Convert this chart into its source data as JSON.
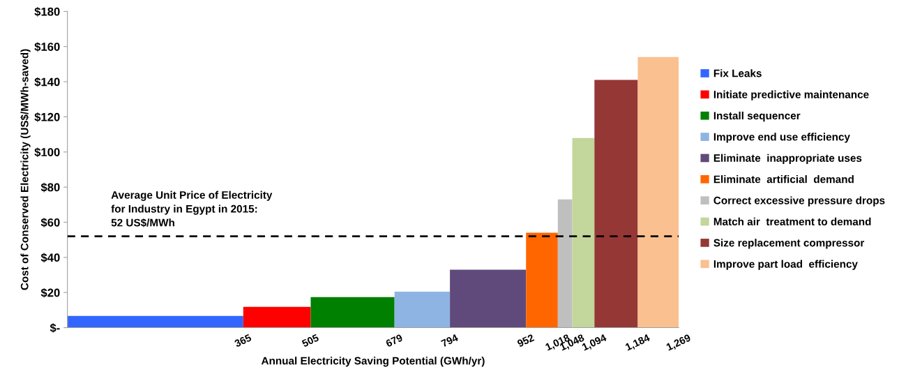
{
  "chart_data": {
    "type": "bar",
    "xlabel": "Annual Electricity Saving Potential (GWh/yr)",
    "ylabel": "Cost of Conserved Electricity (US$/MWh-saved)",
    "x": [
      182.5,
      435,
      592,
      736.5,
      873,
      985,
      1033,
      1071,
      1139,
      1226.5
    ],
    "series": [
      {
        "name": "Fix Leaks",
        "color": "#3366ff",
        "values": [
          6.7,
          null,
          null,
          null,
          null,
          null,
          null,
          null,
          null,
          null
        ]
      },
      {
        "name": "Initiate predictive maintenance",
        "color": "#ff0000",
        "values": [
          null,
          11.8,
          null,
          null,
          null,
          null,
          null,
          null,
          null,
          null
        ]
      },
      {
        "name": "Install sequencer",
        "color": "#008000",
        "values": [
          null,
          null,
          17.4,
          null,
          null,
          null,
          null,
          null,
          null,
          null
        ]
      },
      {
        "name": "Improve end use efficiency",
        "color": "#8eb4e3",
        "values": [
          null,
          null,
          null,
          20.5,
          null,
          null,
          null,
          null,
          null,
          null
        ]
      },
      {
        "name": "Eliminate  inappropriate uses",
        "color": "#604a7b",
        "values": [
          null,
          null,
          null,
          null,
          33,
          null,
          null,
          null,
          null,
          null
        ]
      },
      {
        "name": "Eliminate  artificial  demand",
        "color": "#ff6600",
        "values": [
          null,
          null,
          null,
          null,
          null,
          54,
          null,
          null,
          null,
          null
        ]
      },
      {
        "name": "Correct excessive pressure drops",
        "color": "#bfbfbf",
        "values": [
          null,
          null,
          null,
          null,
          null,
          null,
          73,
          null,
          null,
          null
        ]
      },
      {
        "name": "Match air  treatment to demand",
        "color": "#c3d69b",
        "values": [
          null,
          null,
          null,
          null,
          null,
          null,
          null,
          108,
          null,
          null
        ]
      },
      {
        "name": "Size replacement compressor",
        "color": "#953735",
        "values": [
          null,
          null,
          null,
          null,
          null,
          null,
          null,
          null,
          141,
          null
        ]
      },
      {
        "name": "Improve part load  efficiency",
        "color": "#fac090",
        "values": [
          null,
          null,
          null,
          null,
          null,
          null,
          null,
          null,
          null,
          154
        ]
      }
    ],
    "xlim": [
      0,
      1269
    ],
    "xticks": [
      365,
      505,
      679,
      794,
      952,
      {
        "value": 1018,
        "label": "1,018"
      },
      {
        "value": 1048,
        "label": "1,048"
      },
      {
        "value": 1094,
        "label": "1,094"
      },
      {
        "value": 1184,
        "label": "1,184"
      },
      {
        "value": 1269,
        "label": "1,269"
      }
    ],
    "ylim": [
      0,
      180
    ],
    "yticks": [
      {
        "value": 0,
        "label": "$-"
      },
      {
        "value": 20,
        "label": "$20"
      },
      {
        "value": 40,
        "label": "$40"
      },
      {
        "value": 60,
        "label": "$60"
      },
      {
        "value": 80,
        "label": "$80"
      },
      {
        "value": 100,
        "label": "$100"
      },
      {
        "value": 120,
        "label": "$120"
      },
      {
        "value": 140,
        "label": "$140"
      },
      {
        "value": 160,
        "label": "$160"
      },
      {
        "value": 180,
        "label": "$180"
      }
    ],
    "ref_lines": [
      {
        "axis": "y",
        "value": 52,
        "label": "Average Unit Price of Electricity\nfor Industry in Egypt in 2015:\n52 US$/MWh",
        "color": "#000000",
        "line_style": "dashed"
      }
    ],
    "grid": false,
    "legend": "right"
  }
}
